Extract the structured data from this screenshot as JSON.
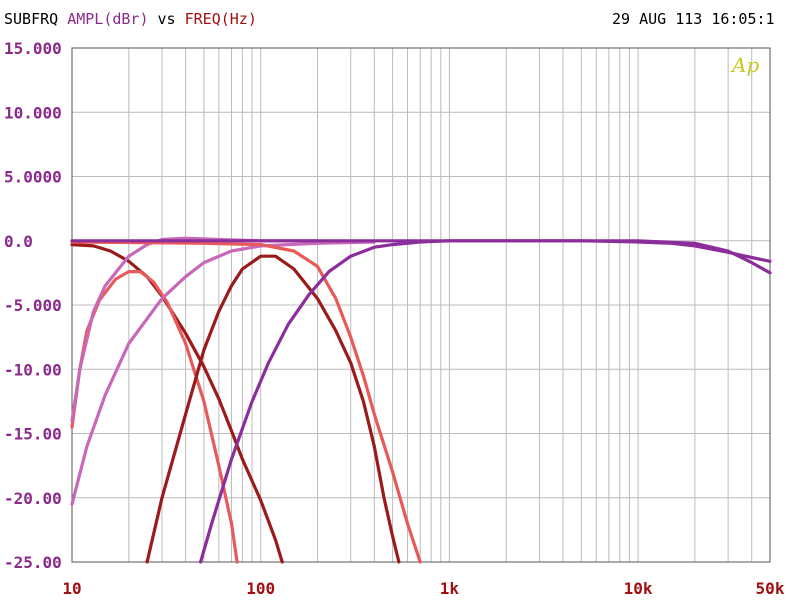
{
  "header": {
    "title_parts": [
      {
        "text": "SUBFRQ",
        "color": "#000000"
      },
      {
        "text": "AMPL(dBr)",
        "color": "#8b2a8b"
      },
      {
        "text": "vs",
        "color": "#000000"
      },
      {
        "text": "FREQ(Hz)",
        "color": "#a01010"
      }
    ],
    "timestamp": "29 AUG 113 16:05:1",
    "logo": "Ap"
  },
  "chart_data": {
    "type": "line",
    "xscale": "log",
    "xlim": [
      10,
      50000
    ],
    "ylim": [
      -25,
      15
    ],
    "grid": true,
    "ylabel": "AMPL(dBr)",
    "xlabel": "FREQ(Hz)",
    "y_ticks": [
      {
        "value": 15,
        "label": "15.000"
      },
      {
        "value": 10,
        "label": "10.000"
      },
      {
        "value": 5,
        "label": "5.0000"
      },
      {
        "value": 0,
        "label": "0.0"
      },
      {
        "value": -5,
        "label": "-5.000"
      },
      {
        "value": -10,
        "label": "-10.00"
      },
      {
        "value": -15,
        "label": "-15.00"
      },
      {
        "value": -20,
        "label": "-20.00"
      },
      {
        "value": -25,
        "label": "-25.00"
      }
    ],
    "x_ticks": [
      {
        "value": 10,
        "label": "10"
      },
      {
        "value": 100,
        "label": "100"
      },
      {
        "value": 1000,
        "label": "1k"
      },
      {
        "value": 10000,
        "label": "10k"
      },
      {
        "value": 50000,
        "label": "50k"
      }
    ],
    "colors": {
      "axis_labels": "#8b2a8b",
      "dark_red": "#9b1a1a",
      "salmon": "#e85a5a",
      "pink": "#c868b8",
      "purple": "#8b2e9b"
    },
    "series": [
      {
        "color": "#9b1a1a",
        "points": [
          [
            10,
            -0.3
          ],
          [
            13,
            -0.4
          ],
          [
            16,
            -0.8
          ],
          [
            20,
            -1.6
          ],
          [
            25,
            -2.8
          ],
          [
            30,
            -4.3
          ],
          [
            40,
            -7.2
          ],
          [
            50,
            -9.8
          ],
          [
            60,
            -12.3
          ],
          [
            70,
            -14.8
          ],
          [
            80,
            -17
          ],
          [
            100,
            -20.2
          ],
          [
            120,
            -23.3
          ],
          [
            130,
            -25
          ]
        ]
      },
      {
        "color": "#e85a5a",
        "points": [
          [
            10,
            -14.5
          ],
          [
            11,
            -10
          ],
          [
            12,
            -7
          ],
          [
            14,
            -4.6
          ],
          [
            17,
            -3
          ],
          [
            20,
            -2.4
          ],
          [
            23,
            -2.4
          ],
          [
            27,
            -3.2
          ],
          [
            32,
            -4.8
          ],
          [
            40,
            -8
          ],
          [
            50,
            -12.5
          ],
          [
            60,
            -17.5
          ],
          [
            70,
            -22
          ],
          [
            75,
            -25
          ]
        ]
      },
      {
        "color": "#c868b8",
        "points": [
          [
            10,
            -20.5
          ],
          [
            12,
            -16
          ],
          [
            15,
            -12
          ],
          [
            20,
            -8
          ],
          [
            30,
            -4.5
          ],
          [
            40,
            -2.8
          ],
          [
            50,
            -1.7
          ],
          [
            70,
            -0.8
          ],
          [
            100,
            -0.4
          ],
          [
            200,
            -0.2
          ],
          [
            400,
            -0.1
          ]
        ]
      },
      {
        "color": "#c868b8",
        "points": [
          [
            10,
            -14
          ],
          [
            11,
            -10
          ],
          [
            13,
            -5.5
          ],
          [
            15,
            -3.5
          ],
          [
            20,
            -1.2
          ],
          [
            25,
            -0.3
          ],
          [
            30,
            0.1
          ],
          [
            40,
            0.2
          ],
          [
            60,
            0.1
          ],
          [
            100,
            0
          ],
          [
            200,
            0
          ]
        ]
      },
      {
        "color": "#9b1a1a",
        "points": [
          [
            25,
            -25
          ],
          [
            30,
            -20
          ],
          [
            40,
            -13.5
          ],
          [
            50,
            -8.5
          ],
          [
            60,
            -5.5
          ],
          [
            70,
            -3.5
          ],
          [
            80,
            -2.2
          ],
          [
            100,
            -1.2
          ],
          [
            120,
            -1.2
          ],
          [
            150,
            -2.2
          ],
          [
            200,
            -4.5
          ],
          [
            250,
            -7
          ],
          [
            300,
            -9.5
          ],
          [
            350,
            -12.5
          ],
          [
            400,
            -16
          ],
          [
            450,
            -20
          ],
          [
            500,
            -23
          ],
          [
            540,
            -25
          ]
        ]
      },
      {
        "color": "#e85a5a",
        "points": [
          [
            10,
            -0.1
          ],
          [
            50,
            -0.2
          ],
          [
            100,
            -0.3
          ],
          [
            150,
            -0.8
          ],
          [
            200,
            -2
          ],
          [
            250,
            -4.5
          ],
          [
            300,
            -7.5
          ],
          [
            350,
            -10.5
          ],
          [
            400,
            -13.5
          ],
          [
            500,
            -18
          ],
          [
            600,
            -22
          ],
          [
            700,
            -25
          ]
        ]
      },
      {
        "color": "#8b2e9b",
        "points": [
          [
            48,
            -25
          ],
          [
            55,
            -22
          ],
          [
            70,
            -17
          ],
          [
            90,
            -12.5
          ],
          [
            110,
            -9.5
          ],
          [
            140,
            -6.5
          ],
          [
            180,
            -4.2
          ],
          [
            230,
            -2.4
          ],
          [
            300,
            -1.2
          ],
          [
            400,
            -0.5
          ],
          [
            500,
            -0.3
          ],
          [
            700,
            -0.1
          ],
          [
            1000,
            0
          ],
          [
            5000,
            0
          ],
          [
            10000,
            -0.1
          ],
          [
            15000,
            -0.2
          ],
          [
            20000,
            -0.4
          ],
          [
            30000,
            -0.9
          ],
          [
            40000,
            -1.3
          ],
          [
            50000,
            -1.6
          ]
        ]
      },
      {
        "color": "#8b2e9b",
        "points": [
          [
            10,
            0
          ],
          [
            100,
            0
          ],
          [
            1000,
            0
          ],
          [
            10000,
            0
          ],
          [
            20000,
            -0.2
          ],
          [
            30000,
            -0.8
          ],
          [
            40000,
            -1.7
          ],
          [
            50000,
            -2.5
          ]
        ]
      }
    ]
  }
}
